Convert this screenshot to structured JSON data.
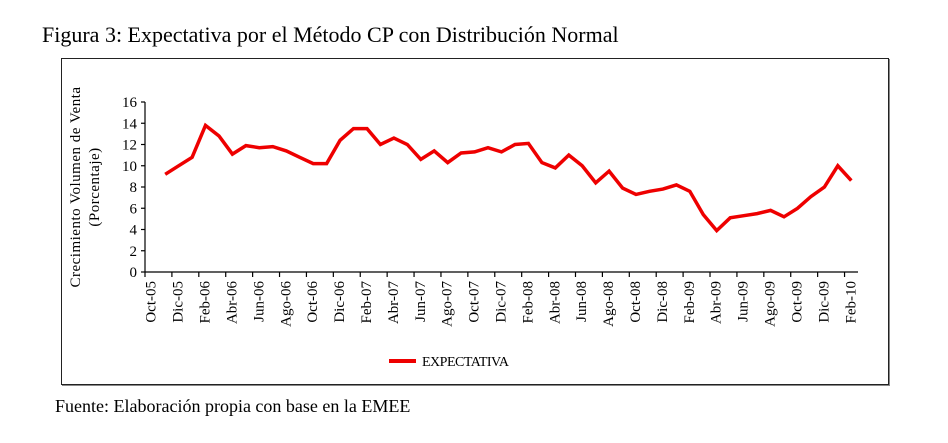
{
  "figure_title": "Figura 3: Expectativa por el Método CP con Distribución Normal",
  "source_note": "Fuente: Elaboración propia con base en la EMEE",
  "chart_data": {
    "type": "line",
    "title": "Figura 3: Expectativa por el Método CP con Distribución Normal",
    "xlabel": "",
    "ylabel": [
      "Crecimiento Volumen de Venta",
      "(Porcentaje)"
    ],
    "ylim": [
      0,
      16
    ],
    "yticks": [
      0,
      2,
      4,
      6,
      8,
      10,
      12,
      14,
      16
    ],
    "grid": false,
    "legend": "bottom-center",
    "categories": [
      "Oct-05",
      "Nov-05",
      "Dic-05",
      "Ene-06",
      "Feb-06",
      "Mar-06",
      "Abr-06",
      "May-06",
      "Jun-06",
      "Jul-06",
      "Ago-06",
      "Sep-06",
      "Oct-06",
      "Nov-06",
      "Dic-06",
      "Ene-07",
      "Feb-07",
      "Mar-07",
      "Abr-07",
      "May-07",
      "Jun-07",
      "Jul-07",
      "Ago-07",
      "Sep-07",
      "Oct-07",
      "Nov-07",
      "Dic-07",
      "Ene-08",
      "Feb-08",
      "Mar-08",
      "Abr-08",
      "May-08",
      "Jun-08",
      "Jul-08",
      "Ago-08",
      "Sep-08",
      "Oct-08",
      "Nov-08",
      "Dic-08",
      "Ene-09",
      "Feb-09",
      "Mar-09",
      "Abr-09",
      "May-09",
      "Jun-09",
      "Jul-09",
      "Ago-09",
      "Sep-09",
      "Oct-09",
      "Nov-09",
      "Dic-09",
      "Ene-10",
      "Feb-10"
    ],
    "tick_labels": [
      "Oct-05",
      "Dic-05",
      "Feb-06",
      "Abr-06",
      "Jun-06",
      "Ago-06",
      "Oct-06",
      "Dic-06",
      "Feb-07",
      "Abr-07",
      "Jun-07",
      "Ago-07",
      "Oct-07",
      "Dic-07",
      "Feb-08",
      "Abr-08",
      "Jun-08",
      "Ago-08",
      "Oct-08",
      "Dic-08",
      "Feb-09",
      "Abr-09",
      "Jun-09",
      "Ago-09",
      "Oct-09",
      "Dic-09",
      "Feb-10"
    ],
    "series": [
      {
        "name": "EXPECTATIVA",
        "color": "#ee0000",
        "values": [
          null,
          9.2,
          10.0,
          10.8,
          13.8,
          12.8,
          11.1,
          11.9,
          11.7,
          11.8,
          11.4,
          10.8,
          10.2,
          10.2,
          12.4,
          13.5,
          13.5,
          12.0,
          12.6,
          12.0,
          10.6,
          11.4,
          10.3,
          11.2,
          11.3,
          11.7,
          11.3,
          12.0,
          12.1,
          10.3,
          9.8,
          11.0,
          10.0,
          8.4,
          9.5,
          7.9,
          7.3,
          7.6,
          7.8,
          8.2,
          7.6,
          5.4,
          3.9,
          5.1,
          5.3,
          5.5,
          5.8,
          5.2,
          6.0,
          7.1,
          8.0,
          10.0,
          8.6
        ]
      }
    ]
  }
}
